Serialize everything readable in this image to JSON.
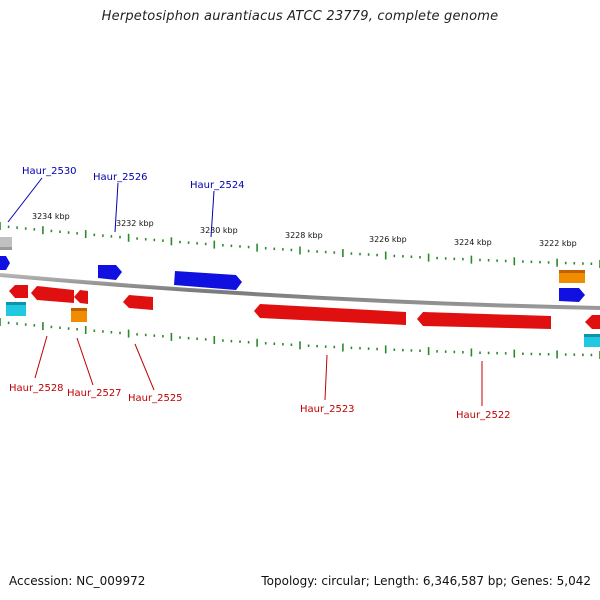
{
  "title": "Herpetosiphon aurantiacus ATCC 23779, complete genome",
  "footer": {
    "accession": "Accession: NC_009972",
    "summary": "Topology: circular; Length: 6,346,587 bp; Genes: 5,042"
  },
  "colors": {
    "background": "#ffffff",
    "backbone": "#888888",
    "tick": "#2a8a2a",
    "forward_gene": "#1010e0",
    "reverse_gene": "#e01010",
    "orange_feature": "#f08c00",
    "cyan_feature": "#20c8e0",
    "grey_feature": "#c0c0c0",
    "forward_label": "#0000b0",
    "reverse_label": "#c00000"
  },
  "scale_labels": [
    "3234 kbp",
    "3232 kbp",
    "3230 kbp",
    "3228 kbp",
    "3226 kbp",
    "3224 kbp",
    "3222 kbp"
  ],
  "gene_labels": {
    "forward": [
      "Haur_2530",
      "Haur_2526",
      "Haur_2524"
    ],
    "reverse": [
      "Haur_2528",
      "Haur_2527",
      "Haur_2525",
      "Haur_2523",
      "Haur_2522"
    ]
  }
}
